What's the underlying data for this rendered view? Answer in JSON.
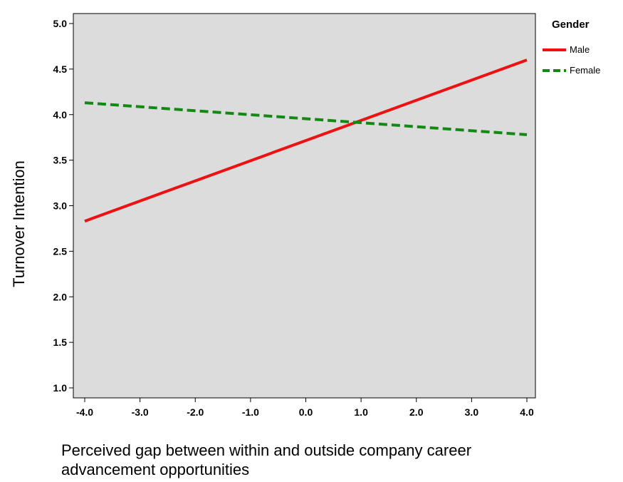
{
  "chart_data": {
    "type": "line",
    "title": "",
    "xlabel_lines": [
      "Perceived gap between within and outside company career",
      "advancement opportunities"
    ],
    "ylabel": "Turnover Intention",
    "xlim": [
      -4.0,
      4.0
    ],
    "ylim": [
      1.0,
      5.0
    ],
    "x_ticks": [
      -4.0,
      -3.0,
      -2.0,
      -1.0,
      0.0,
      1.0,
      2.0,
      3.0,
      4.0
    ],
    "x_tick_labels": [
      "-4.0",
      "-3.0",
      "-2.0",
      "-1.0",
      "0.0",
      "1.0",
      "2.0",
      "3.0",
      "4.0"
    ],
    "y_ticks": [
      1.0,
      1.5,
      2.0,
      2.5,
      3.0,
      3.5,
      4.0,
      4.5,
      5.0
    ],
    "y_tick_labels": [
      "1.0",
      "1.5",
      "2.0",
      "2.5",
      "3.0",
      "3.5",
      "4.0",
      "4.5",
      "5.0"
    ],
    "grid": false,
    "plot_background": "#dcdcdc",
    "legend": {
      "title": "Gender",
      "placement": "right-top"
    },
    "series": [
      {
        "name": "Male",
        "color": "#ee1111",
        "dash": "solid",
        "x": [
          -4.0,
          4.0
        ],
        "y": [
          2.83,
          4.6
        ]
      },
      {
        "name": "Female",
        "color": "#138813",
        "dash": "dashed",
        "x": [
          -4.0,
          4.0
        ],
        "y": [
          4.13,
          3.78
        ]
      }
    ]
  }
}
